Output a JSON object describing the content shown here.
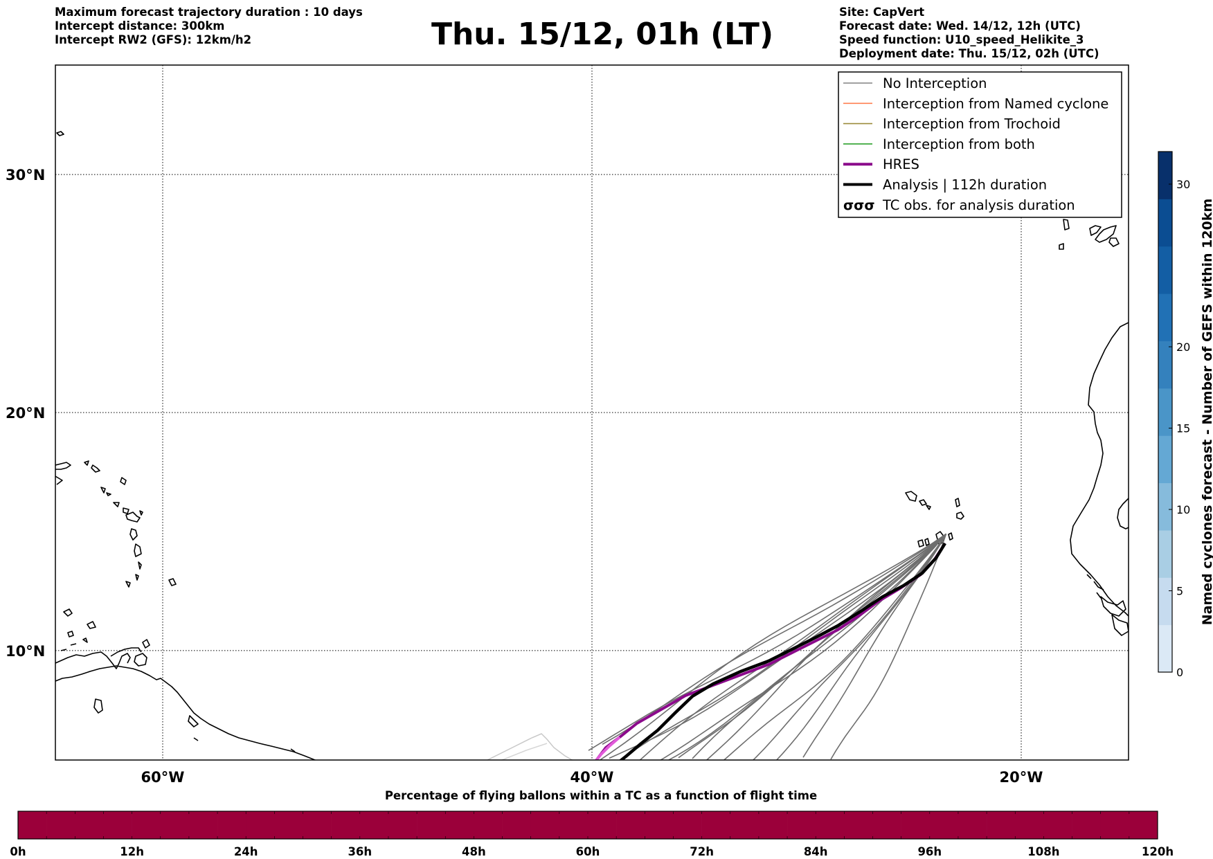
{
  "header_left": [
    "Maximum forecast trajectory duration : 10 days",
    "Intercept distance: 300km",
    "Intercept RW2 (GFS):  12km/h2"
  ],
  "title": "Thu. 15/12, 01h (LT)",
  "header_right": [
    "Site: CapVert",
    "Forecast date: Wed. 14/12, 12h (UTC)",
    "Speed function: U10_speed_Helikite_3",
    "Deployment date: Thu. 15/12, 02h (UTC)"
  ],
  "map": {
    "lon_range": [
      -65,
      -15
    ],
    "lat_range": [
      5.4,
      34.6
    ],
    "meridians": [
      -60,
      -40,
      -20
    ],
    "parallels": [
      10,
      20,
      30
    ],
    "lon_labels": [
      "60°W",
      "40°W",
      "20°W"
    ],
    "lat_labels": [
      "10°N",
      "20°N",
      "30°N"
    ],
    "grid": "dotted",
    "launch_site": {
      "lon": -23.5,
      "lat": 14.9
    }
  },
  "legend": {
    "placement": "top-right",
    "items": [
      {
        "label": "No Interception",
        "color": "#808080",
        "style": "line"
      },
      {
        "label": "Interception from Named cyclone",
        "color": "#ff7f50",
        "style": "line"
      },
      {
        "label": "Interception from Trochoid",
        "color": "#9a8a3a",
        "style": "line"
      },
      {
        "label": "Interception from both",
        "color": "#2ca02c",
        "style": "line"
      },
      {
        "label": "HRES",
        "color": "#8b0a8b",
        "style": "thick-line"
      },
      {
        "label": "Analysis | 112h duration",
        "color": "#000000",
        "style": "thick-line"
      },
      {
        "label": "TC obs. for analysis duration",
        "color": "#000000",
        "style": "cyclone-symbol",
        "symbol": "σσσ"
      }
    ]
  },
  "colorbar_vertical": {
    "label": "Named cyclones forecast - Number of GEFS within 120km",
    "min": 0,
    "max": 32,
    "ticks": [
      0,
      5,
      10,
      15,
      20,
      30
    ],
    "colors": [
      "#dbe9f6",
      "#c6dbef",
      "#a9cee4",
      "#86bbdc",
      "#64a8d4",
      "#4a95c8",
      "#3481bd",
      "#2171b5",
      "#135ea4",
      "#0b4d92",
      "#08306b"
    ]
  },
  "time_bar": {
    "title": "Percentage of flying ballons within a TC as a function of flight time",
    "ticks": [
      "0h",
      "12h",
      "24h",
      "36h",
      "48h",
      "60h",
      "72h",
      "84h",
      "96h",
      "108h",
      "120h"
    ],
    "segments": 40,
    "color": "#9b003a"
  }
}
